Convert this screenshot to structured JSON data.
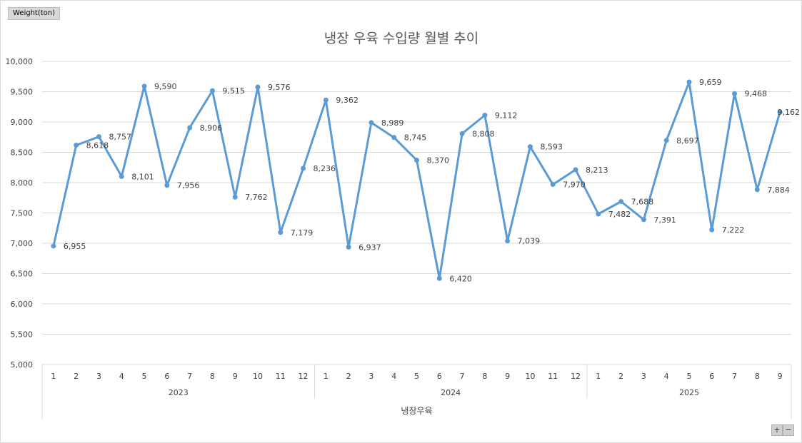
{
  "unit_label": "Weight(ton)",
  "zoom": {
    "plus": "+",
    "minus": "−"
  },
  "chart_data": {
    "type": "line",
    "title": "냉장 우육 수입량 월별 추이",
    "category_label": "냉장우육",
    "ylim": [
      5000,
      10000
    ],
    "yticks": [
      "5,000",
      "5,500",
      "6,000",
      "6,500",
      "7,000",
      "7,500",
      "8,000",
      "8,500",
      "9,000",
      "9,500",
      "10,000"
    ],
    "ytick_values": [
      5000,
      5500,
      6000,
      6500,
      7000,
      7500,
      8000,
      8500,
      9000,
      9500,
      10000
    ],
    "grid": true,
    "color": "#5b9bd5",
    "years": [
      {
        "label": "2023",
        "months": [
          "1",
          "2",
          "3",
          "4",
          "5",
          "6",
          "7",
          "8",
          "9",
          "10",
          "11",
          "12"
        ]
      },
      {
        "label": "2024",
        "months": [
          "1",
          "2",
          "3",
          "4",
          "5",
          "6",
          "7",
          "8",
          "9",
          "10",
          "11",
          "12"
        ]
      },
      {
        "label": "2025",
        "months": [
          "1",
          "2",
          "3",
          "4",
          "5",
          "6",
          "7",
          "8",
          "9"
        ]
      }
    ],
    "values": [
      6955,
      8618,
      8757,
      8101,
      9590,
      7956,
      8906,
      9515,
      7762,
      9576,
      7179,
      8236,
      9362,
      6937,
      8989,
      8745,
      8370,
      6420,
      8808,
      9112,
      7039,
      8593,
      7970,
      8213,
      7482,
      7688,
      7391,
      8697,
      9659,
      7222,
      9468,
      7884,
      9162
    ],
    "labels": [
      "6,955",
      "8,618",
      "8,757",
      "8,101",
      "9,590",
      "7,956",
      "8,906",
      "9,515",
      "7,762",
      "9,576",
      "7,179",
      "8,236",
      "9,362",
      "6,937",
      "8,989",
      "8,745",
      "8,370",
      "6,420",
      "8,808",
      "9,112",
      "7,039",
      "8,593",
      "7,970",
      "8,213",
      "7,482",
      "7,688",
      "7,391",
      "8,697",
      "9,659",
      "7,222",
      "9,468",
      "7,884",
      "9,162"
    ]
  }
}
